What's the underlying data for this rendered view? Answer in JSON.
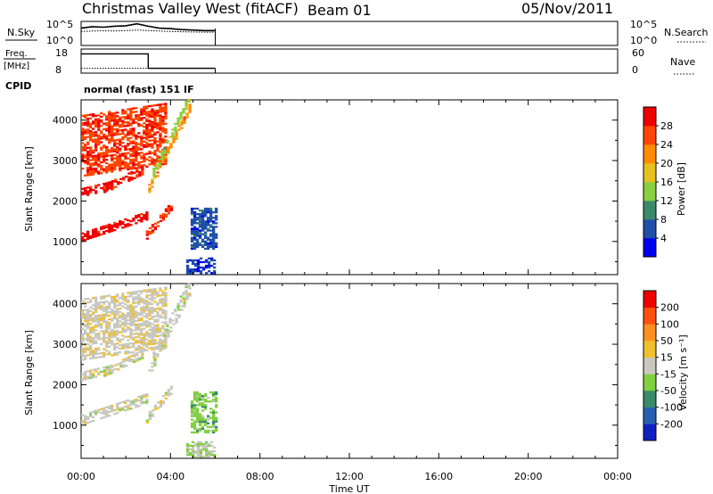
{
  "header": {
    "title": "Christmas Valley West (fitACF)",
    "beam": "Beam 01",
    "date": "05/Nov/2011"
  },
  "time_axis": {
    "label": "Time UT",
    "ticks": [
      "00:00",
      "04:00",
      "08:00",
      "12:00",
      "16:00",
      "20:00",
      "00:00"
    ]
  },
  "nsky_panel": {
    "left_label": "N.Sky",
    "right_label": "N.Search",
    "left_ticks": [
      "10^5",
      "10^0"
    ],
    "right_ticks": [
      "10^5",
      "10^0"
    ]
  },
  "freq_panel": {
    "left_label_1": "Freq.",
    "left_label_2": "[MHz]",
    "right_label": "Nave",
    "left_ticks": [
      "18",
      "8"
    ],
    "right_ticks": [
      "60",
      "0"
    ]
  },
  "cpid": {
    "label": "CPID",
    "value": "normal (fast) 151 IF"
  },
  "power_panel": {
    "ylabel": "Slant Range [km]",
    "yticks": [
      "4000",
      "3000",
      "2000",
      "1000"
    ],
    "colorbar_label": "Power [dB]",
    "colorbar_ticks": [
      "28",
      "24",
      "20",
      "16",
      "12",
      "8",
      "4"
    ],
    "colors": [
      "#0000ee",
      "#1f4fa8",
      "#3a8a6a",
      "#88d040",
      "#e8c020",
      "#ff8c00",
      "#ff4500",
      "#ee0000"
    ]
  },
  "velocity_panel": {
    "ylabel": "Slant Range [km]",
    "yticks": [
      "4000",
      "3000",
      "2000",
      "1000"
    ],
    "colorbar_label": "Velocity [m s⁻¹]",
    "colorbar_ticks": [
      "200",
      "100",
      "50",
      "15",
      "-15",
      "-50",
      "-100",
      "-200"
    ],
    "colors": [
      "#1020c0",
      "#2a5fb0",
      "#3a8a6a",
      "#80d040",
      "#c8c8c0",
      "#f0c030",
      "#ff9020",
      "#ff5010",
      "#ee0000"
    ]
  },
  "chart_data": [
    {
      "type": "line",
      "name_panel": "nsky",
      "x_range_hours": [
        0,
        24
      ],
      "series": [
        {
          "x": [
            0.0,
            0.5,
            1.0,
            1.5,
            2.0,
            2.5,
            3.0,
            3.5,
            4.0,
            4.5,
            5.0,
            5.5,
            6.0
          ],
          "values": [
            0.72,
            0.78,
            0.76,
            0.8,
            0.82,
            0.9,
            0.8,
            0.72,
            0.7,
            0.66,
            0.64,
            0.62,
            0.62
          ]
        },
        {
          "x": [
            0.0,
            0.5,
            1.0,
            1.5,
            2.0,
            2.5,
            3.0,
            3.5,
            4.0,
            4.5,
            5.0,
            5.5,
            6.0
          ],
          "values": [
            0.58,
            0.6,
            0.61,
            0.6,
            0.62,
            0.64,
            0.62,
            0.6,
            0.58,
            0.57,
            0.56,
            0.55,
            0.55
          ]
        }
      ]
    },
    {
      "type": "line",
      "name_panel": "freq",
      "x_range_hours": [
        0,
        24
      ],
      "series": [
        {
          "x": [
            0.0,
            3.0,
            3.0,
            6.0
          ],
          "values": [
            16,
            16,
            10,
            10
          ]
        },
        {
          "x": [
            0.0,
            6.0
          ],
          "values": [
            10,
            10
          ]
        }
      ],
      "ylim": [
        8,
        18
      ]
    },
    {
      "type": "heatmap",
      "name_panel": "power",
      "x_range_hours": [
        0,
        24
      ],
      "ylim": [
        180,
        4500
      ],
      "clim": [
        0,
        32
      ],
      "bands": [
        {
          "t0": 0.0,
          "t1": 2.9,
          "r0": 1000,
          "r1": 1200,
          "slope": 180,
          "value": 30
        },
        {
          "t0": 0.0,
          "t1": 1.4,
          "r0": 2100,
          "r1": 2300,
          "slope": 130,
          "value": 29
        },
        {
          "t0": 0.0,
          "t1": 3.8,
          "r0": 2600,
          "r1": 4100,
          "slope": 80,
          "value": 27
        },
        {
          "t0": 1.0,
          "t1": 2.8,
          "r0": 2200,
          "r1": 2400,
          "slope": 260,
          "value": 28
        },
        {
          "t0": 2.9,
          "t1": 4.1,
          "r0": 1050,
          "r1": 1250,
          "slope": 650,
          "value": 27
        },
        {
          "t0": 3.0,
          "t1": 4.9,
          "r0": 2200,
          "r1": 2400,
          "slope": 1100,
          "value": 22
        },
        {
          "t0": 3.2,
          "t1": 5.1,
          "r0": 2600,
          "r1": 2800,
          "slope": 1150,
          "value": 14
        },
        {
          "t0": 4.9,
          "t1": 6.0,
          "r0": 800,
          "r1": 1800,
          "slope": 0,
          "value": 6
        },
        {
          "t0": 4.7,
          "t1": 6.0,
          "r0": 200,
          "r1": 600,
          "slope": 0,
          "value": 5
        }
      ]
    },
    {
      "type": "heatmap",
      "name_panel": "velocity",
      "x_range_hours": [
        0,
        24
      ],
      "ylim": [
        180,
        4500
      ],
      "clim": [
        -250,
        250
      ],
      "bands": [
        {
          "t0": 0.0,
          "t1": 2.9,
          "r0": 1000,
          "r1": 1250,
          "slope": 180,
          "value": 0
        },
        {
          "t0": 0.0,
          "t1": 1.4,
          "r0": 2100,
          "r1": 2300,
          "slope": 130,
          "value": 0
        },
        {
          "t0": 0.0,
          "t1": 3.8,
          "r0": 2600,
          "r1": 4100,
          "slope": 80,
          "value": 10
        },
        {
          "t0": 1.0,
          "t1": 2.8,
          "r0": 2200,
          "r1": 2400,
          "slope": 260,
          "value": 0
        },
        {
          "t0": 2.9,
          "t1": 4.1,
          "r0": 1050,
          "r1": 1250,
          "slope": 650,
          "value": 0
        },
        {
          "t0": 3.0,
          "t1": 4.9,
          "r0": 2200,
          "r1": 2400,
          "slope": 1100,
          "value": 5
        },
        {
          "t0": 3.2,
          "t1": 5.1,
          "r0": 2600,
          "r1": 2800,
          "slope": 1150,
          "value": -5
        },
        {
          "t0": 4.9,
          "t1": 6.0,
          "r0": 800,
          "r1": 1800,
          "slope": 0,
          "value": -60
        },
        {
          "t0": 4.7,
          "t1": 6.0,
          "r0": 200,
          "r1": 600,
          "slope": 0,
          "value": -20
        }
      ]
    }
  ]
}
